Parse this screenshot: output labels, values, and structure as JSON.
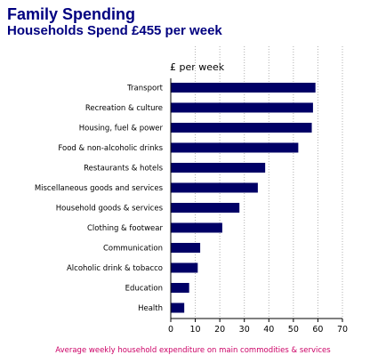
{
  "chart_data": {
    "type": "bar",
    "orientation": "horizontal",
    "title": "Family Spending",
    "subtitle": "Households Spend £455 per week",
    "ylabel": "£ per week",
    "caption": "Average weekly household expenditure on main commodities & services",
    "categories": [
      "Transport",
      "Recreation & culture",
      "Housing, fuel & power",
      "Food & non-alcoholic drinks",
      "Restaurants & hotels",
      "Miscellaneous goods and services",
      "Household goods & services",
      "Clothing & footwear",
      "Communication",
      "Alcoholic drink & tobacco",
      "Education",
      "Health"
    ],
    "values": [
      59,
      58,
      57.5,
      52,
      38.5,
      35.5,
      28,
      21,
      12,
      11,
      7.5,
      5.5
    ],
    "xlim": [
      0,
      70
    ],
    "xticks": [
      0,
      10,
      20,
      30,
      40,
      50,
      60,
      70
    ],
    "grid": true,
    "bar_color": "#000066"
  }
}
